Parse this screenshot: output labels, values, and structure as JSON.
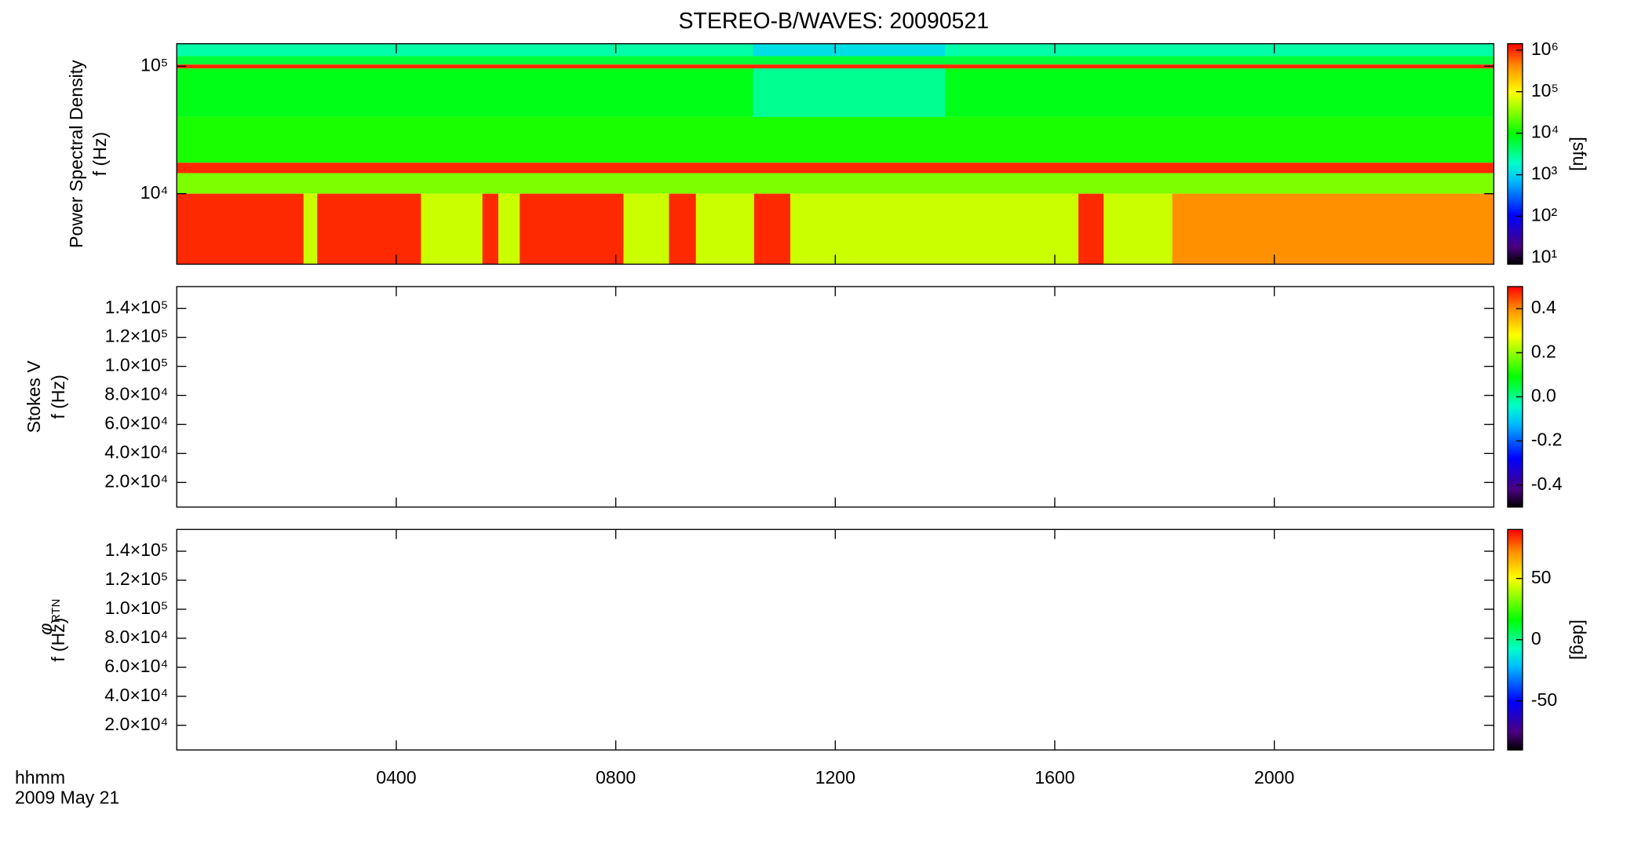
{
  "figure": {
    "title": "STEREO-B/WAVES: 20090521",
    "xlabel": "hhmm",
    "date": "2009 May 21",
    "xlim": [
      0,
      24
    ],
    "xticks": [
      {
        "value": 4,
        "label": "0400"
      },
      {
        "value": 8,
        "label": "0800"
      },
      {
        "value": 12,
        "label": "1200"
      },
      {
        "value": 16,
        "label": "1600"
      },
      {
        "value": 20,
        "label": "2000"
      }
    ]
  },
  "chart_data": [
    {
      "type": "heatmap",
      "ylabel": "Power Spectral Density",
      "ylabel2": "f (Hz)",
      "ylog": true,
      "ylim": [
        2800,
        150000
      ],
      "yticks": [
        {
          "value": 10000,
          "label": "10⁴"
        },
        {
          "value": 100000,
          "label": "10⁵"
        }
      ],
      "colormap": "rainbow",
      "clog": true,
      "clim": [
        7,
        1430000
      ],
      "cticks": [
        {
          "value": 10,
          "label": "10¹"
        },
        {
          "value": 100,
          "label": "10²"
        },
        {
          "value": 1000,
          "label": "10³"
        },
        {
          "value": 10000,
          "label": "10⁴"
        },
        {
          "value": 100000,
          "label": "10⁵"
        },
        {
          "value": 1000000,
          "label": "10⁶"
        }
      ],
      "clabel": "[sfu]",
      "bands": [
        {
          "f": [
            120000,
            150000
          ],
          "value": 2500
        },
        {
          "f": [
            103000,
            120000
          ],
          "value": 6000
        },
        {
          "f": [
            96000,
            103000
          ],
          "value": 1000000
        },
        {
          "f": [
            40000,
            96000
          ],
          "value": 8000
        },
        {
          "f": [
            17500,
            40000
          ],
          "value": 12000
        },
        {
          "f": [
            14500,
            17500
          ],
          "value": 1000000
        },
        {
          "f": [
            10000,
            14500
          ],
          "value": 30000
        },
        {
          "f": [
            2800,
            10000
          ],
          "value": 60000
        }
      ],
      "events": [
        {
          "t": [
            10.5,
            14
          ],
          "f": [
            40000,
            96000
          ],
          "value": 3000
        },
        {
          "t": [
            10.5,
            14
          ],
          "f": [
            120000,
            150000
          ],
          "value": 1200
        },
        {
          "t": [
            0,
            2.31
          ],
          "f": [
            2800,
            10000
          ],
          "value": 1000000
        },
        {
          "t": [
            2.56,
            4.45
          ],
          "f": [
            2800,
            10000
          ],
          "value": 1000000
        },
        {
          "t": [
            5.57,
            5.86
          ],
          "f": [
            2800,
            10000
          ],
          "value": 1000000
        },
        {
          "t": [
            6.25,
            8.14
          ],
          "f": [
            2800,
            10000
          ],
          "value": 1000000
        },
        {
          "t": [
            8.97,
            9.46
          ],
          "f": [
            2800,
            10000
          ],
          "value": 1000000
        },
        {
          "t": [
            10.52,
            11.18
          ],
          "f": [
            2800,
            10000
          ],
          "value": 1000000
        },
        {
          "t": [
            16.43,
            16.89
          ],
          "f": [
            2800,
            10000
          ],
          "value": 1000000
        },
        {
          "t": [
            18.14,
            24
          ],
          "f": [
            2800,
            10000
          ],
          "value": 400000
        }
      ]
    },
    {
      "type": "heatmap",
      "ylabel": "Stokes V",
      "ylabel2": "f (Hz)",
      "ylim": [
        3000,
        155000
      ],
      "yticks": [
        {
          "value": 20000,
          "label": "2.0×10⁴"
        },
        {
          "value": 40000,
          "label": "4.0×10⁴"
        },
        {
          "value": 60000,
          "label": "6.0×10⁴"
        },
        {
          "value": 80000,
          "label": "8.0×10⁴"
        },
        {
          "value": 100000,
          "label": "1.0×10⁵"
        },
        {
          "value": 120000,
          "label": "1.2×10⁵"
        },
        {
          "value": 140000,
          "label": "1.4×10⁵"
        }
      ],
      "colormap": "rainbow",
      "clim": [
        -0.5,
        0.5
      ],
      "cticks": [
        -0.4,
        -0.2,
        {
          "value": 0,
          "label": "0.0"
        },
        0.2,
        0.4
      ]
    },
    {
      "type": "heatmap",
      "ylabel": "φ",
      "ylabel_sub": "RTN",
      "ylabel2": "f (Hz)",
      "ylim": [
        3000,
        155000
      ],
      "yticks": [
        {
          "value": 20000,
          "label": "2.0×10⁴"
        },
        {
          "value": 40000,
          "label": "4.0×10⁴"
        },
        {
          "value": 60000,
          "label": "6.0×10⁴"
        },
        {
          "value": 80000,
          "label": "8.0×10⁴"
        },
        {
          "value": 100000,
          "label": "1.0×10⁵"
        },
        {
          "value": 120000,
          "label": "1.2×10⁵"
        },
        {
          "value": 140000,
          "label": "1.4×10⁵"
        }
      ],
      "colormap": "rainbow",
      "clim": [
        -90,
        90
      ],
      "cticks": [
        -50,
        0,
        50
      ],
      "clabel": "[deg]"
    }
  ]
}
